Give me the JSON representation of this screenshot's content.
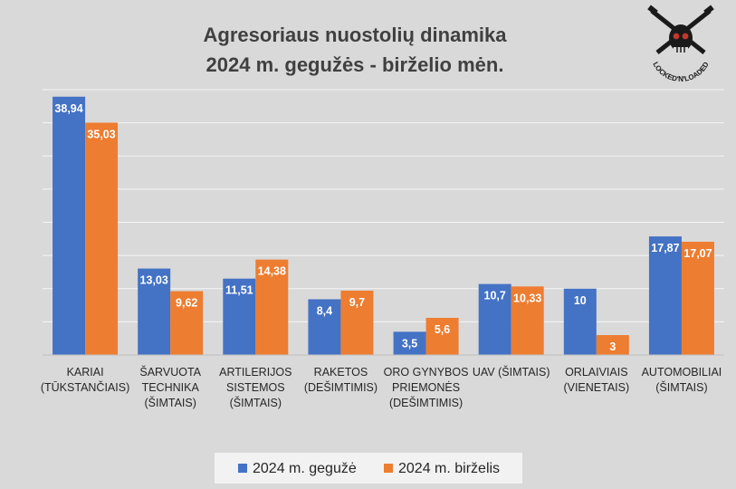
{
  "chart_data": {
    "type": "bar",
    "title": [
      "Agresoriaus nuostolių dinamika",
      "2024 m. gegužės - birželio mėn."
    ],
    "categories": [
      [
        "KARIAI",
        "(TŪKSTANČIAIS)"
      ],
      [
        "ŠARVUOTA",
        "TECHNIKA",
        "(ŠIMTAIS)"
      ],
      [
        "ARTILERIJOS",
        "SISTEMOS",
        "(ŠIMTAIS)"
      ],
      [
        "RAKETOS",
        "(DEŠIMTIMIS)"
      ],
      [
        "ORO GYNYBOS",
        "PRIEMONĖS",
        "(DEŠIMTIMIS)"
      ],
      [
        "UAV (ŠIMTAIS)"
      ],
      [
        "ORLAIVIAIS",
        "(VIENETAIS)"
      ],
      [
        "AUTOMOBILIAI",
        "(ŠIMTAIS)"
      ]
    ],
    "series": [
      {
        "name": "2024 m. gegužė",
        "color": "#4472c4",
        "values": [
          38.94,
          13.03,
          11.51,
          8.4,
          3.5,
          10.7,
          10,
          17.87
        ],
        "labels": [
          "38,94",
          "13,03",
          "11,51",
          "8,4",
          "3,5",
          "10,7",
          "10",
          "17,87"
        ]
      },
      {
        "name": "2024 m. birželis",
        "color": "#ed7d31",
        "values": [
          35.03,
          9.62,
          14.38,
          9.7,
          5.6,
          10.33,
          3,
          17.07
        ],
        "labels": [
          "35,03",
          "9,62",
          "14,38",
          "9,7",
          "5,6",
          "10,33",
          "3",
          "17,07"
        ]
      }
    ],
    "ylim": [
      0,
      40
    ],
    "grid_step": 5,
    "grid": true,
    "legend_position": "bottom",
    "background": "#d9d9d9"
  },
  "logo": {
    "icon": "skull-crossed-rifles-icon",
    "text": "LOCKED'N'LOADED"
  }
}
